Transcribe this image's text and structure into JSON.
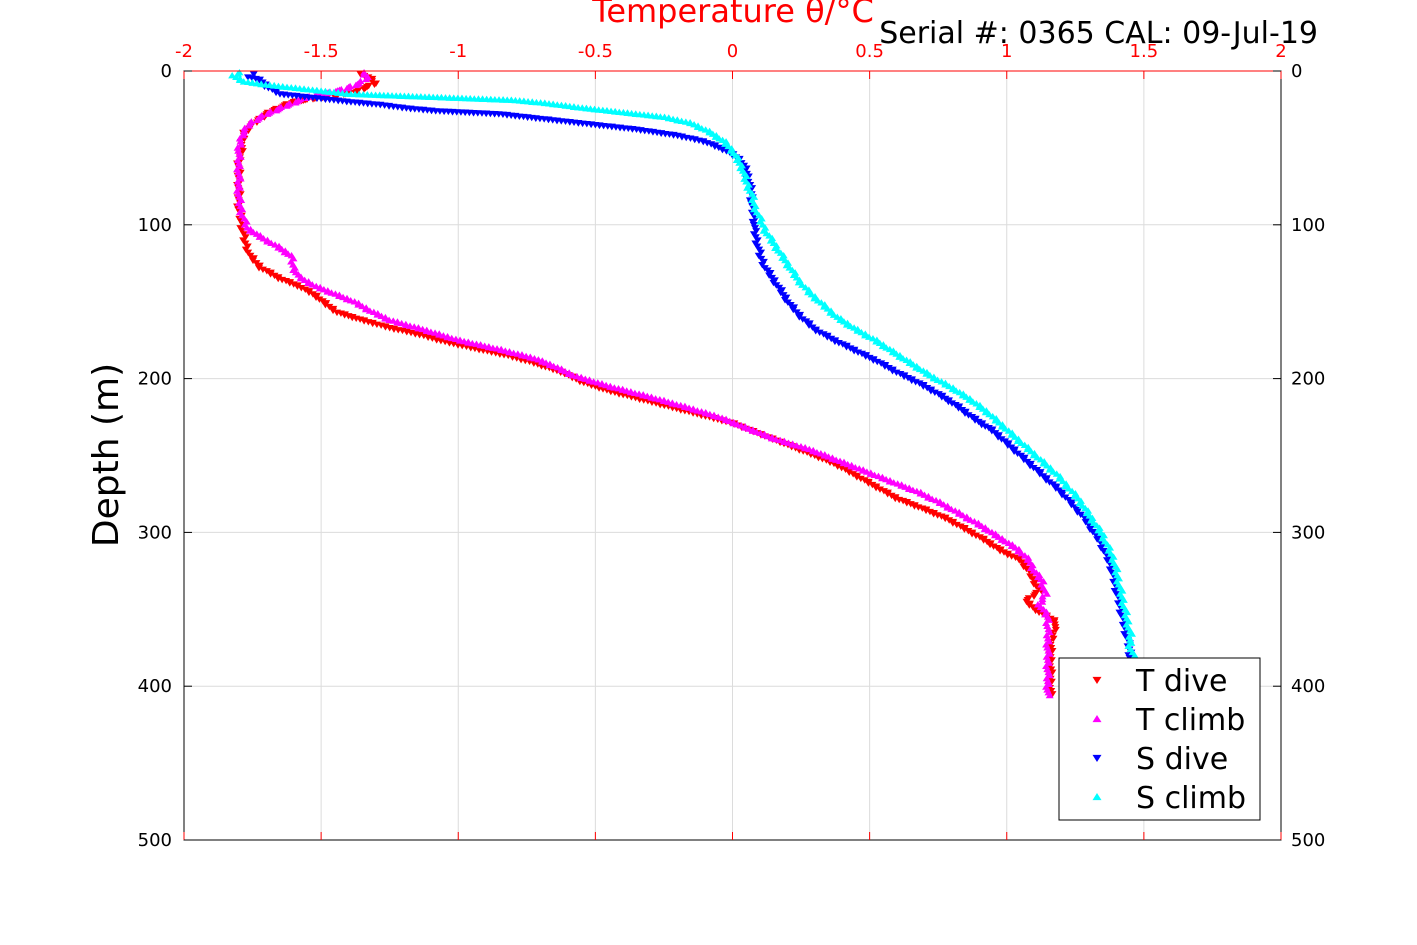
{
  "header": {
    "serial_text": "Serial #: 0365  CAL: 09-Jul-19"
  },
  "colors": {
    "top_axis": "#ff0000",
    "grid": "#dcdcdc",
    "axis": "#000000"
  },
  "chart_data": {
    "type": "scatter",
    "title": "Temperature θ/°C",
    "xlabel": "Temperature θ/°C",
    "ylabel": "Depth (m)",
    "xlim": [
      -2,
      2
    ],
    "ylim": [
      0,
      500
    ],
    "y_reversed": true,
    "grid": true,
    "legend_position": "bottom-right",
    "x_ticks": [
      "-2",
      "-1.5",
      "-1",
      "-0.5",
      "0",
      "0.5",
      "1",
      "1.5",
      "2"
    ],
    "y_ticks": [
      "0",
      "100",
      "200",
      "300",
      "400",
      "500"
    ],
    "series": [
      {
        "name": "T dive",
        "color": "#ff0000",
        "marker": "triangle-down",
        "points": [
          [
            -1.35,
            2
          ],
          [
            -1.32,
            5
          ],
          [
            -1.3,
            8
          ],
          [
            -1.38,
            14
          ],
          [
            -1.6,
            20
          ],
          [
            -1.68,
            26
          ],
          [
            -1.73,
            32
          ],
          [
            -1.78,
            40
          ],
          [
            -1.79,
            50
          ],
          [
            -1.8,
            60
          ],
          [
            -1.8,
            70
          ],
          [
            -1.8,
            80
          ],
          [
            -1.8,
            90
          ],
          [
            -1.79,
            100
          ],
          [
            -1.78,
            110
          ],
          [
            -1.76,
            120
          ],
          [
            -1.72,
            128
          ],
          [
            -1.65,
            135
          ],
          [
            -1.58,
            140
          ],
          [
            -1.52,
            146
          ],
          [
            -1.48,
            152
          ],
          [
            -1.44,
            157
          ],
          [
            -1.35,
            162
          ],
          [
            -1.25,
            167
          ],
          [
            -1.15,
            171
          ],
          [
            -1.05,
            176
          ],
          [
            -0.95,
            180
          ],
          [
            -0.82,
            185
          ],
          [
            -0.72,
            190
          ],
          [
            -0.62,
            196
          ],
          [
            -0.55,
            202
          ],
          [
            -0.45,
            208
          ],
          [
            -0.3,
            215
          ],
          [
            -0.15,
            222
          ],
          [
            0,
            229
          ],
          [
            0.1,
            236
          ],
          [
            0.2,
            243
          ],
          [
            0.3,
            250
          ],
          [
            0.38,
            256
          ],
          [
            0.45,
            263
          ],
          [
            0.52,
            270
          ],
          [
            0.6,
            278
          ],
          [
            0.7,
            285
          ],
          [
            0.78,
            291
          ],
          [
            0.85,
            298
          ],
          [
            0.92,
            305
          ],
          [
            0.98,
            312
          ],
          [
            1.05,
            318
          ],
          [
            1.08,
            325
          ],
          [
            1.1,
            332
          ],
          [
            1.12,
            338
          ],
          [
            1.07,
            345
          ],
          [
            1.12,
            352
          ],
          [
            1.18,
            358
          ],
          [
            1.17,
            365
          ],
          [
            1.16,
            375
          ],
          [
            1.16,
            385
          ],
          [
            1.16,
            395
          ],
          [
            1.16,
            405
          ]
        ]
      },
      {
        "name": "T climb",
        "color": "#ff00ff",
        "marker": "triangle-up",
        "points": [
          [
            -1.35,
            1
          ],
          [
            -1.33,
            4
          ],
          [
            -1.36,
            8
          ],
          [
            -1.42,
            12
          ],
          [
            -1.55,
            17
          ],
          [
            -1.62,
            22
          ],
          [
            -1.7,
            28
          ],
          [
            -1.76,
            34
          ],
          [
            -1.79,
            42
          ],
          [
            -1.8,
            52
          ],
          [
            -1.8,
            62
          ],
          [
            -1.8,
            72
          ],
          [
            -1.8,
            82
          ],
          [
            -1.79,
            92
          ],
          [
            -1.77,
            102
          ],
          [
            -1.72,
            108
          ],
          [
            -1.66,
            114
          ],
          [
            -1.61,
            120
          ],
          [
            -1.6,
            128
          ],
          [
            -1.58,
            134
          ],
          [
            -1.52,
            140
          ],
          [
            -1.45,
            145
          ],
          [
            -1.38,
            150
          ],
          [
            -1.32,
            156
          ],
          [
            -1.25,
            162
          ],
          [
            -1.13,
            168
          ],
          [
            -1.0,
            175
          ],
          [
            -0.85,
            181
          ],
          [
            -0.72,
            187
          ],
          [
            -0.65,
            192
          ],
          [
            -0.58,
            198
          ],
          [
            -0.45,
            205
          ],
          [
            -0.3,
            212
          ],
          [
            -0.18,
            218
          ],
          [
            -0.05,
            225
          ],
          [
            0.05,
            232
          ],
          [
            0.15,
            239
          ],
          [
            0.28,
            246
          ],
          [
            0.38,
            253
          ],
          [
            0.48,
            260
          ],
          [
            0.58,
            267
          ],
          [
            0.68,
            274
          ],
          [
            0.76,
            281
          ],
          [
            0.83,
            288
          ],
          [
            0.9,
            295
          ],
          [
            0.97,
            303
          ],
          [
            1.04,
            311
          ],
          [
            1.08,
            318
          ],
          [
            1.1,
            325
          ],
          [
            1.13,
            332
          ],
          [
            1.14,
            340
          ],
          [
            1.12,
            347
          ],
          [
            1.15,
            355
          ],
          [
            1.15,
            365
          ],
          [
            1.15,
            375
          ],
          [
            1.15,
            385
          ],
          [
            1.15,
            395
          ],
          [
            1.15,
            406
          ]
        ]
      },
      {
        "name": "S dive",
        "color": "#0000ff",
        "marker": "triangle-down",
        "points": [
          [
            -1.75,
            2
          ],
          [
            -1.76,
            4
          ],
          [
            -1.72,
            6
          ],
          [
            -1.7,
            10
          ],
          [
            -1.65,
            15
          ],
          [
            -1.5,
            18
          ],
          [
            -1.4,
            20
          ],
          [
            -1.28,
            22
          ],
          [
            -1.2,
            24
          ],
          [
            -1.08,
            26
          ],
          [
            -0.85,
            28
          ],
          [
            -0.7,
            31
          ],
          [
            -0.5,
            35
          ],
          [
            -0.35,
            38
          ],
          [
            -0.2,
            42
          ],
          [
            -0.1,
            46
          ],
          [
            -0.02,
            52
          ],
          [
            0.03,
            58
          ],
          [
            0.05,
            65
          ],
          [
            0.06,
            72
          ],
          [
            0.07,
            80
          ],
          [
            0.07,
            88
          ],
          [
            0.08,
            96
          ],
          [
            0.08,
            104
          ],
          [
            0.09,
            112
          ],
          [
            0.1,
            120
          ],
          [
            0.12,
            128
          ],
          [
            0.15,
            136
          ],
          [
            0.18,
            144
          ],
          [
            0.21,
            152
          ],
          [
            0.25,
            160
          ],
          [
            0.3,
            168
          ],
          [
            0.37,
            175
          ],
          [
            0.45,
            182
          ],
          [
            0.53,
            189
          ],
          [
            0.6,
            196
          ],
          [
            0.68,
            203
          ],
          [
            0.75,
            210
          ],
          [
            0.82,
            218
          ],
          [
            0.88,
            226
          ],
          [
            0.95,
            234
          ],
          [
            1.0,
            242
          ],
          [
            1.05,
            250
          ],
          [
            1.1,
            258
          ],
          [
            1.15,
            266
          ],
          [
            1.2,
            274
          ],
          [
            1.24,
            282
          ],
          [
            1.28,
            290
          ],
          [
            1.31,
            298
          ],
          [
            1.34,
            306
          ],
          [
            1.36,
            314
          ],
          [
            1.38,
            322
          ],
          [
            1.39,
            330
          ],
          [
            1.4,
            338
          ],
          [
            1.41,
            346
          ],
          [
            1.42,
            354
          ],
          [
            1.43,
            362
          ],
          [
            1.44,
            370
          ],
          [
            1.45,
            378
          ],
          [
            1.45,
            385
          ]
        ]
      },
      {
        "name": "S climb",
        "color": "#00ffff",
        "marker": "triangle-up",
        "points": [
          [
            -1.8,
            1
          ],
          [
            -1.82,
            3
          ],
          [
            -1.8,
            5
          ],
          [
            -1.78,
            7
          ],
          [
            -1.7,
            9
          ],
          [
            -1.6,
            11
          ],
          [
            -1.5,
            13
          ],
          [
            -1.4,
            15
          ],
          [
            -1.25,
            16
          ],
          [
            -1.1,
            17
          ],
          [
            -0.95,
            18
          ],
          [
            -0.8,
            19
          ],
          [
            -0.68,
            21
          ],
          [
            -0.55,
            24
          ],
          [
            -0.4,
            27
          ],
          [
            -0.25,
            30
          ],
          [
            -0.15,
            34
          ],
          [
            -0.08,
            40
          ],
          [
            -0.03,
            46
          ],
          [
            0.0,
            52
          ],
          [
            0.02,
            58
          ],
          [
            0.04,
            65
          ],
          [
            0.05,
            72
          ],
          [
            0.07,
            80
          ],
          [
            0.08,
            88
          ],
          [
            0.1,
            96
          ],
          [
            0.12,
            104
          ],
          [
            0.15,
            112
          ],
          [
            0.18,
            120
          ],
          [
            0.21,
            128
          ],
          [
            0.24,
            136
          ],
          [
            0.28,
            144
          ],
          [
            0.33,
            152
          ],
          [
            0.38,
            160
          ],
          [
            0.45,
            168
          ],
          [
            0.52,
            175
          ],
          [
            0.58,
            182
          ],
          [
            0.65,
            190
          ],
          [
            0.72,
            198
          ],
          [
            0.8,
            206
          ],
          [
            0.87,
            214
          ],
          [
            0.93,
            222
          ],
          [
            0.98,
            230
          ],
          [
            1.03,
            238
          ],
          [
            1.08,
            246
          ],
          [
            1.13,
            254
          ],
          [
            1.18,
            262
          ],
          [
            1.22,
            270
          ],
          [
            1.26,
            278
          ],
          [
            1.29,
            286
          ],
          [
            1.32,
            294
          ],
          [
            1.35,
            302
          ],
          [
            1.37,
            310
          ],
          [
            1.39,
            318
          ],
          [
            1.4,
            326
          ],
          [
            1.41,
            334
          ],
          [
            1.42,
            342
          ],
          [
            1.43,
            350
          ],
          [
            1.44,
            358
          ],
          [
            1.45,
            366
          ],
          [
            1.45,
            374
          ],
          [
            1.46,
            380
          ]
        ]
      }
    ]
  }
}
